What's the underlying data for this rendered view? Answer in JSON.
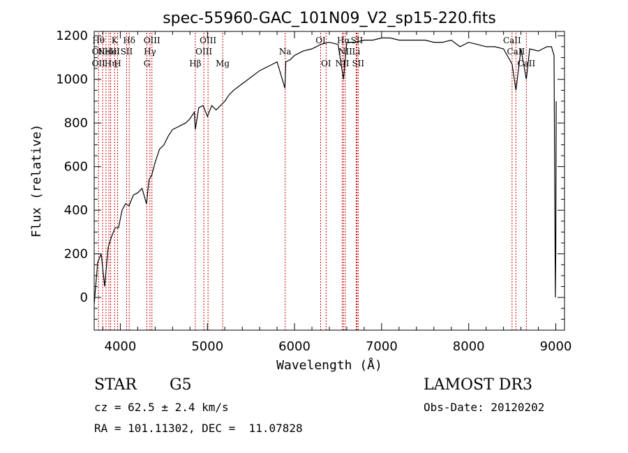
{
  "chart_data": {
    "type": "line",
    "title": "spec-55960-GAC_101N09_V2_sp15-220.fits",
    "xlabel": "Wavelength (Å)",
    "ylabel": "Flux (relative)",
    "xlim": [
      3700,
      9100
    ],
    "ylim": [
      -150,
      1220
    ],
    "xticks": [
      4000,
      5000,
      6000,
      7000,
      8000,
      9000
    ],
    "yticks": [
      0,
      200,
      400,
      600,
      800,
      1000,
      1200
    ],
    "grid": false,
    "series": [
      {
        "x": [
          3700,
          3740,
          3780,
          3820,
          3860,
          3900,
          3940,
          3980,
          4020,
          4060,
          4100,
          4150,
          4200,
          4250,
          4300,
          4330,
          4360,
          4400,
          4450,
          4500,
          4550,
          4600,
          4650,
          4700,
          4750,
          4800,
          4850,
          4861,
          4900,
          4950,
          5000,
          5050,
          5100,
          5150,
          5200,
          5250,
          5300,
          5400,
          5500,
          5600,
          5700,
          5800,
          5890,
          5900,
          5950,
          6000,
          6100,
          6200,
          6300,
          6400,
          6500,
          6563,
          6600,
          6700,
          6800,
          6900,
          7000,
          7100,
          7200,
          7300,
          7400,
          7500,
          7600,
          7700,
          7800,
          7900,
          8000,
          8100,
          8200,
          8300,
          8400,
          8498,
          8542,
          8600,
          8662,
          8700,
          8800,
          8900,
          8950,
          8980,
          8995,
          9000,
          9005
        ],
        "y": [
          -30,
          160,
          200,
          50,
          230,
          280,
          320,
          320,
          400,
          430,
          420,
          470,
          480,
          500,
          430,
          540,
          560,
          620,
          680,
          700,
          740,
          770,
          780,
          790,
          800,
          820,
          850,
          770,
          870,
          880,
          830,
          880,
          860,
          880,
          900,
          930,
          950,
          980,
          1010,
          1040,
          1060,
          1080,
          960,
          1080,
          1090,
          1110,
          1130,
          1140,
          1160,
          1170,
          1160,
          1000,
          1170,
          1170,
          1180,
          1180,
          1190,
          1190,
          1180,
          1180,
          1180,
          1180,
          1170,
          1170,
          1180,
          1150,
          1170,
          1160,
          1150,
          1150,
          1140,
          1070,
          950,
          1140,
          1000,
          1140,
          1130,
          1150,
          1150,
          1110,
          0,
          200,
          900
        ]
      }
    ],
    "lines": [
      {
        "wl": 3750,
        "labels": [
          {
            "text": "Hθ",
            "row": 1
          },
          {
            "text": "OII",
            "row": 2
          },
          {
            "text": "OII",
            "row": 3
          }
        ]
      },
      {
        "wl": 3797,
        "labels": []
      },
      {
        "wl": 3835,
        "labels": []
      },
      {
        "wl": 3869,
        "labels": [
          {
            "text": "NeIII",
            "row": 2
          }
        ]
      },
      {
        "wl": 3889,
        "labels": [
          {
            "text": "He",
            "row": 2
          },
          {
            "text": "Hη",
            "row": 3
          }
        ]
      },
      {
        "wl": 3934,
        "labels": [
          {
            "text": "K",
            "row": 1
          }
        ]
      },
      {
        "wl": 3969,
        "labels": [
          {
            "text": "H",
            "row": 3
          }
        ]
      },
      {
        "wl": 4072,
        "labels": [
          {
            "text": "SII",
            "row": 2
          }
        ]
      },
      {
        "wl": 4102,
        "labels": [
          {
            "text": "Hδ",
            "row": 1
          }
        ]
      },
      {
        "wl": 4305,
        "labels": [
          {
            "text": "G",
            "row": 3
          }
        ]
      },
      {
        "wl": 4340,
        "labels": [
          {
            "text": "Hγ",
            "row": 2
          }
        ]
      },
      {
        "wl": 4363,
        "labels": [
          {
            "text": "OIII",
            "row": 1
          }
        ]
      },
      {
        "wl": 4861,
        "labels": [
          {
            "text": "Hβ",
            "row": 3
          }
        ]
      },
      {
        "wl": 4959,
        "labels": [
          {
            "text": "OIII",
            "row": 2
          }
        ]
      },
      {
        "wl": 5007,
        "labels": [
          {
            "text": "OIII",
            "row": 1
          }
        ]
      },
      {
        "wl": 5175,
        "labels": [
          {
            "text": "Mg",
            "row": 3
          }
        ]
      },
      {
        "wl": 5893,
        "labels": [
          {
            "text": "Na",
            "row": 2
          }
        ]
      },
      {
        "wl": 6300,
        "labels": [
          {
            "text": "OI",
            "row": 1
          }
        ]
      },
      {
        "wl": 6363,
        "labels": [
          {
            "text": "OI",
            "row": 3
          }
        ]
      },
      {
        "wl": 6548,
        "labels": [
          {
            "text": "NII",
            "row": 3
          }
        ]
      },
      {
        "wl": 6563,
        "labels": [
          {
            "text": "Hα",
            "row": 1
          }
        ]
      },
      {
        "wl": 6583,
        "labels": [
          {
            "text": "NII",
            "row": 2
          }
        ]
      },
      {
        "wl": 6708,
        "labels": [
          {
            "text": "Li",
            "row": 2
          }
        ]
      },
      {
        "wl": 6716,
        "labels": [
          {
            "text": "SII",
            "row": 1
          }
        ]
      },
      {
        "wl": 6731,
        "labels": [
          {
            "text": "SII",
            "row": 3
          }
        ]
      },
      {
        "wl": 8498,
        "labels": [
          {
            "text": "CaII",
            "row": 1
          }
        ]
      },
      {
        "wl": 8542,
        "labels": [
          {
            "text": "CaII",
            "row": 2
          }
        ]
      },
      {
        "wl": 8662,
        "labels": [
          {
            "text": "CaII",
            "row": 3
          }
        ]
      }
    ]
  },
  "info": {
    "star_label": "STAR",
    "spectral_type": "G5",
    "survey": "LAMOST DR3",
    "cz": "cz = 62.5 ± 2.4 km/s",
    "obs_date": "Obs-Date: 20120202",
    "radec": "RA = 101.11302, DEC =  11.07828"
  },
  "colors": {
    "spectrum": "#000000",
    "line_markers": "#cc0000"
  }
}
